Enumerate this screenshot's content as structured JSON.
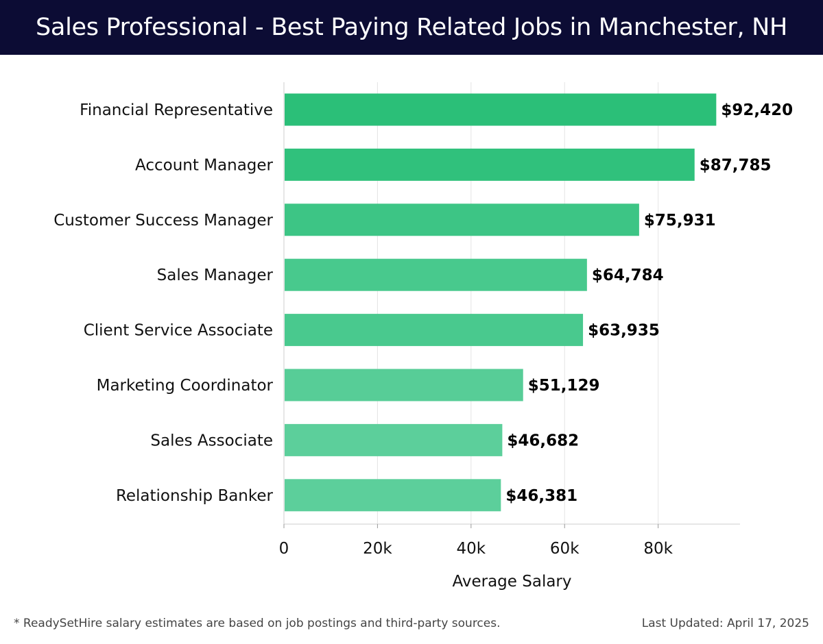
{
  "header": {
    "title": "Sales Professional - Best Paying Related Jobs in Manchester, NH"
  },
  "chart_data": {
    "type": "bar",
    "orientation": "horizontal",
    "title": "Sales Professional - Best Paying Related Jobs in Manchester, NH",
    "xlabel": "Average Salary",
    "ylabel": "",
    "categories": [
      "Financial Representative",
      "Account Manager",
      "Customer Success Manager",
      "Sales Manager",
      "Client Service Associate",
      "Marketing Coordinator",
      "Sales Associate",
      "Relationship Banker"
    ],
    "values": [
      92420,
      87785,
      75931,
      64784,
      63935,
      51129,
      46682,
      46381
    ],
    "value_labels": [
      "$92,420",
      "$87,785",
      "$75,931",
      "$64,784",
      "$63,935",
      "$51,129",
      "$46,682",
      "$46,381"
    ],
    "xlim": [
      0,
      97500
    ],
    "ticks": [
      0,
      20000,
      40000,
      60000,
      80000
    ],
    "tick_labels": [
      "0",
      "20k",
      "40k",
      "60k",
      "80k"
    ],
    "grid": true,
    "colors": {
      "max": "#2bbf78",
      "min": "#5ccf9b",
      "grid": "#e4e4e4",
      "axis": "#cccccc"
    }
  },
  "footer": {
    "note": "* ReadySetHire salary estimates are based on job postings and third-party sources.",
    "updated": "Last Updated: April 17, 2025"
  }
}
